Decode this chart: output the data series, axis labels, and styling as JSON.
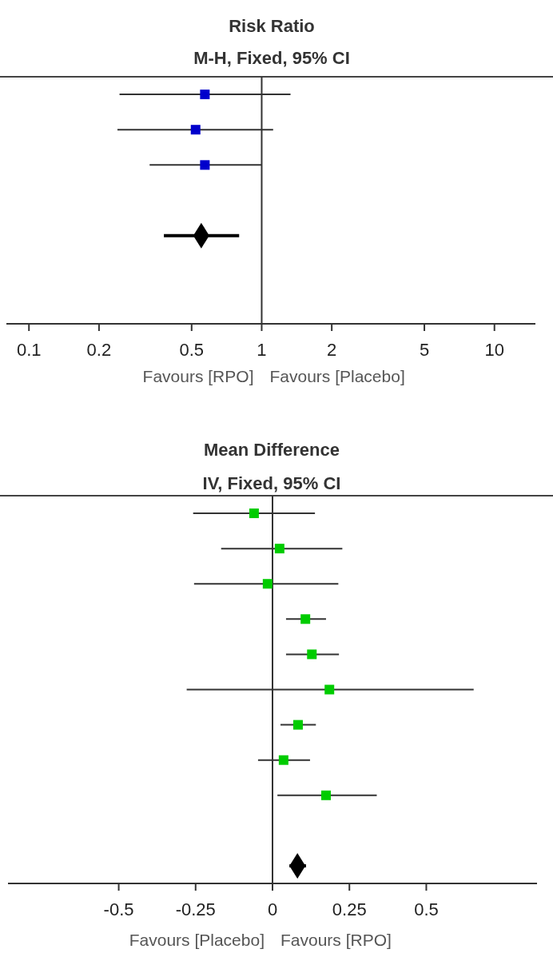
{
  "chart_data": [
    {
      "type": "scatter",
      "orientation": "horizontal",
      "title": "Risk Ratio",
      "subtitle": "M-H, Fixed, 95% CI",
      "categories": [
        null,
        null,
        null,
        null,
        null,
        null,
        null
      ],
      "log": "x",
      "xlim": [
        0.08,
        15
      ],
      "xticks": [
        0.1,
        0.2,
        0.5,
        1,
        2,
        5,
        10
      ],
      "grid": false,
      "series": [
        {
          "color": "#0000cc",
          "marker": "square",
          "values": [
            0.57,
            0.52,
            0.57,
            null,
            null,
            null,
            null
          ],
          "errors": [
            [
              0.245,
              1.33
            ],
            [
              0.24,
              1.12
            ],
            [
              0.33,
              1.0
            ],
            null,
            null,
            null,
            null
          ]
        },
        {
          "color": "#000000",
          "marker": "diamond",
          "values": [
            null,
            null,
            null,
            null,
            0.55,
            null,
            null
          ],
          "errors": [
            null,
            null,
            null,
            null,
            [
              0.38,
              0.8
            ],
            null,
            null
          ]
        }
      ],
      "ref_lines": [
        {
          "axis": "x",
          "value": 1
        }
      ],
      "annotations": [
        "Favours [RPO]",
        "Favours [Placebo]"
      ]
    },
    {
      "type": "scatter",
      "orientation": "horizontal",
      "title": "Mean Difference",
      "subtitle": "IV, Fixed, 95% CI",
      "categories": [
        null,
        null,
        null,
        null,
        null,
        null,
        null,
        null,
        null,
        null,
        null
      ],
      "xlim": [
        -0.86,
        0.86
      ],
      "xticks": [
        -0.5,
        -0.25,
        0,
        0.25,
        0.5
      ],
      "grid": false,
      "series": [
        {
          "color": "#00cc00",
          "marker": "square",
          "values": [
            -0.06,
            0.023,
            -0.016,
            0.107,
            0.128,
            0.185,
            0.083,
            0.036,
            0.174,
            null,
            null
          ],
          "errors": [
            [
              -0.258,
              0.138
            ],
            [
              -0.167,
              0.227
            ],
            [
              -0.255,
              0.214
            ],
            [
              0.044,
              0.174
            ],
            [
              0.044,
              0.216
            ],
            [
              -0.279,
              0.654
            ],
            [
              0.026,
              0.141
            ],
            [
              -0.047,
              0.122
            ],
            [
              0.016,
              0.339
            ],
            null,
            null
          ]
        },
        {
          "color": "#000000",
          "marker": "diamond",
          "values": [
            null,
            null,
            null,
            null,
            null,
            null,
            null,
            null,
            null,
            null,
            0.081
          ],
          "errors": [
            null,
            null,
            null,
            null,
            null,
            null,
            null,
            null,
            null,
            null,
            [
              0.055,
              0.109
            ]
          ]
        }
      ],
      "ref_lines": [
        {
          "axis": "x",
          "value": 0
        }
      ],
      "annotations": [
        "Favours [Placebo]",
        "Favours [RPO]"
      ]
    }
  ]
}
